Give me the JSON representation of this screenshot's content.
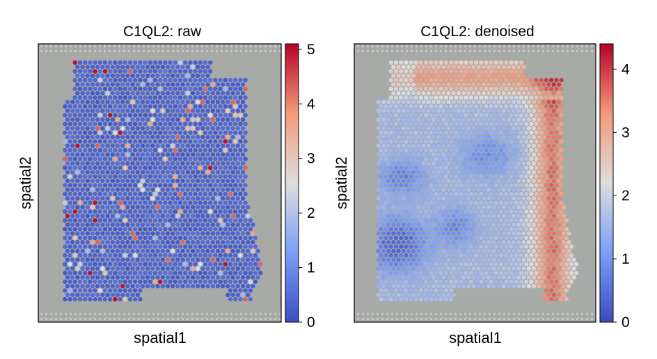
{
  "chart_data": [
    {
      "type": "heatmap",
      "title": "C1QL2: raw",
      "xlabel": "spatial1",
      "ylabel": "spatial2",
      "colorbar": {
        "colormap": "coolwarm",
        "range": [
          0,
          5.1
        ],
        "ticks": [
          0,
          1,
          2,
          3,
          4,
          5
        ],
        "tick_labels": [
          "0",
          "1",
          "2",
          "3",
          "4",
          "5"
        ]
      },
      "background_level": 0.2,
      "description_values": {
        "sparse_high_spot_levels": [
          1.8,
          2.2,
          2.5,
          3.0,
          3.6,
          4.3,
          5.0
        ]
      }
    },
    {
      "type": "heatmap",
      "title": "C1QL2: denoised",
      "xlabel": "spatial1",
      "ylabel": "spatial2",
      "colorbar": {
        "colormap": "coolwarm",
        "range": [
          0,
          4.4
        ],
        "ticks": [
          0,
          1,
          2,
          3,
          4
        ],
        "tick_labels": [
          "0",
          "1",
          "2",
          "3",
          "4"
        ]
      },
      "high_regions": [
        "top band",
        "right edge"
      ],
      "low_regions": [
        "lower-left",
        "center patches"
      ]
    }
  ],
  "colors": {
    "frame": "#000000",
    "tissue_background": "#a8aaa8",
    "cmap_low": "#3b4cc0",
    "cmap_mid": "#dddddd",
    "cmap_high": "#b40426"
  }
}
